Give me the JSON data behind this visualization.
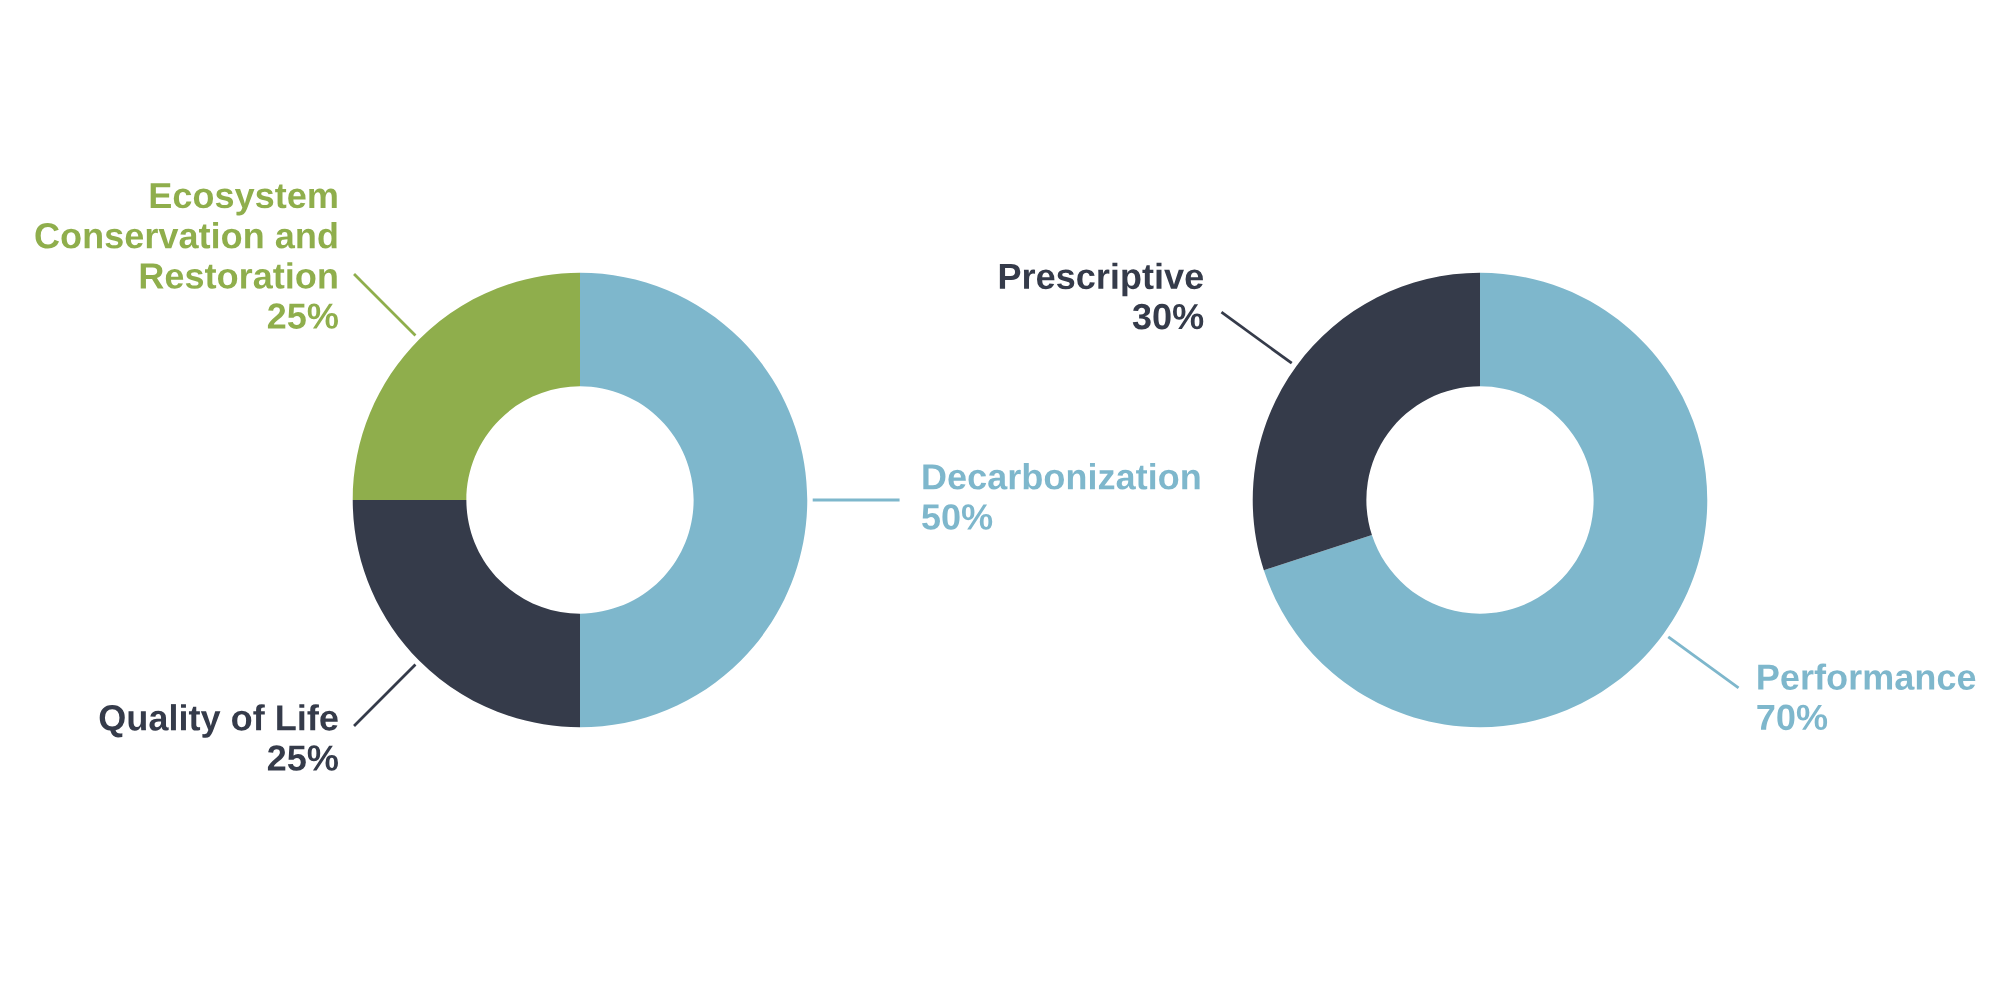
{
  "chart_data": [
    {
      "type": "donut",
      "categories": [
        "Decarbonization",
        "Quality of Life",
        "Ecosystem\nConservation and\nRestoration"
      ],
      "values": [
        50,
        25,
        25
      ],
      "value_labels": [
        "50%",
        "25%",
        "25%"
      ],
      "colors": [
        "#7eb7cc",
        "#353b4a",
        "#8fae4c"
      ],
      "legend": false
    },
    {
      "type": "donut",
      "categories": [
        "Performance",
        "Prescriptive"
      ],
      "values": [
        70,
        30
      ],
      "value_labels": [
        "70%",
        "30%"
      ],
      "colors": [
        "#7eb7cc",
        "#353b4a"
      ],
      "legend": false
    }
  ]
}
